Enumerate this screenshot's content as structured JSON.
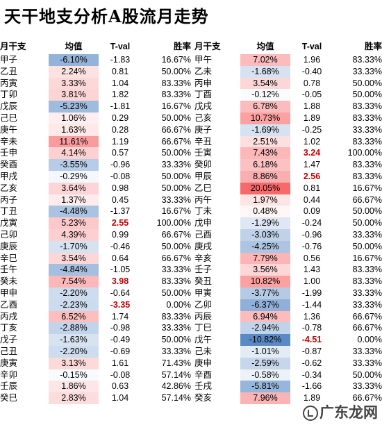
{
  "title": "天干地支分析A股流月走势",
  "headers": {
    "month": "月干支",
    "mean": "均值",
    "tval": "T-val",
    "win": "胜率"
  },
  "watermark": "广东龙网",
  "colors": {
    "pos": "#f8696b",
    "neg": "#5a8ac6",
    "sig": "#c00000"
  },
  "left": [
    {
      "month": "甲子",
      "mean": "-6.10%",
      "tval": "-1.83",
      "win": "16.67%",
      "v": -6.1,
      "sig": false
    },
    {
      "month": "乙丑",
      "mean": "2.24%",
      "tval": "0.81",
      "win": "50.00%",
      "v": 2.24,
      "sig": false
    },
    {
      "month": "丙寅",
      "mean": "3.33%",
      "tval": "1.04",
      "win": "83.33%",
      "v": 3.33,
      "sig": false
    },
    {
      "month": "丁卯",
      "mean": "3.81%",
      "tval": "1.82",
      "win": "83.33%",
      "v": 3.81,
      "sig": false
    },
    {
      "month": "戊辰",
      "mean": "-5.23%",
      "tval": "-1.81",
      "win": "16.67%",
      "v": -5.23,
      "sig": false
    },
    {
      "month": "己巳",
      "mean": "1.06%",
      "tval": "0.29",
      "win": "50.00%",
      "v": 1.06,
      "sig": false
    },
    {
      "month": "庚午",
      "mean": "1.63%",
      "tval": "0.28",
      "win": "66.67%",
      "v": 1.63,
      "sig": false
    },
    {
      "month": "辛未",
      "mean": "11.61%",
      "tval": "1.19",
      "win": "66.67%",
      "v": 11.61,
      "sig": false
    },
    {
      "month": "壬申",
      "mean": "4.14%",
      "tval": "0.57",
      "win": "50.00%",
      "v": 4.14,
      "sig": false
    },
    {
      "month": "癸酉",
      "mean": "-3.55%",
      "tval": "-0.96",
      "win": "33.33%",
      "v": -3.55,
      "sig": false
    },
    {
      "month": "甲戌",
      "mean": "-0.29%",
      "tval": "-0.08",
      "win": "50.00%",
      "v": -0.29,
      "sig": false
    },
    {
      "month": "乙亥",
      "mean": "3.64%",
      "tval": "0.98",
      "win": "50.00%",
      "v": 3.64,
      "sig": false
    },
    {
      "month": "丙子",
      "mean": "1.37%",
      "tval": "0.45",
      "win": "33.33%",
      "v": 1.37,
      "sig": false
    },
    {
      "month": "丁丑",
      "mean": "-4.48%",
      "tval": "-1.37",
      "win": "16.67%",
      "v": -4.48,
      "sig": false
    },
    {
      "month": "戊寅",
      "mean": "5.23%",
      "tval": "2.55",
      "win": "100.00%",
      "v": 5.23,
      "sig": true
    },
    {
      "month": "己卯",
      "mean": "4.39%",
      "tval": "0.99",
      "win": "66.67%",
      "v": 4.39,
      "sig": false
    },
    {
      "month": "庚辰",
      "mean": "-1.70%",
      "tval": "-0.46",
      "win": "50.00%",
      "v": -1.7,
      "sig": false
    },
    {
      "month": "辛巳",
      "mean": "3.54%",
      "tval": "0.64",
      "win": "66.67%",
      "v": 3.54,
      "sig": false
    },
    {
      "month": "壬午",
      "mean": "-4.84%",
      "tval": "-1.05",
      "win": "33.33%",
      "v": -4.84,
      "sig": false
    },
    {
      "month": "癸未",
      "mean": "7.54%",
      "tval": "3.98",
      "win": "83.33%",
      "v": 7.54,
      "sig": true
    },
    {
      "month": "甲申",
      "mean": "-2.20%",
      "tval": "-0.64",
      "win": "50.00%",
      "v": -2.2,
      "sig": false
    },
    {
      "month": "乙酉",
      "mean": "-2.23%",
      "tval": "-3.35",
      "win": "0.00%",
      "v": -2.23,
      "sig": true
    },
    {
      "month": "丙戌",
      "mean": "6.52%",
      "tval": "1.74",
      "win": "83.33%",
      "v": 6.52,
      "sig": false
    },
    {
      "month": "丁亥",
      "mean": "-2.88%",
      "tval": "-0.98",
      "win": "33.33%",
      "v": -2.88,
      "sig": false
    },
    {
      "month": "戊子",
      "mean": "-1.63%",
      "tval": "-0.49",
      "win": "50.00%",
      "v": -1.63,
      "sig": false
    },
    {
      "month": "己丑",
      "mean": "-2.20%",
      "tval": "-0.69",
      "win": "33.33%",
      "v": -2.2,
      "sig": false
    },
    {
      "month": "庚寅",
      "mean": "3.13%",
      "tval": "1.61",
      "win": "71.43%",
      "v": 3.13,
      "sig": false
    },
    {
      "month": "辛卯",
      "mean": "-0.15%",
      "tval": "-0.08",
      "win": "57.14%",
      "v": -0.15,
      "sig": false
    },
    {
      "month": "壬辰",
      "mean": "1.86%",
      "tval": "0.63",
      "win": "42.86%",
      "v": 1.86,
      "sig": false
    },
    {
      "month": "癸巳",
      "mean": "2.83%",
      "tval": "1.04",
      "win": "57.14%",
      "v": 2.83,
      "sig": false
    }
  ],
  "right": [
    {
      "month": "甲午",
      "mean": "7.02%",
      "tval": "1.96",
      "win": "83.33%",
      "v": 7.02,
      "sig": false
    },
    {
      "month": "乙未",
      "mean": "-1.68%",
      "tval": "-0.40",
      "win": "33.33%",
      "v": -1.68,
      "sig": false
    },
    {
      "month": "丙申",
      "mean": "3.54%",
      "tval": "0.78",
      "win": "50.00%",
      "v": 3.54,
      "sig": false
    },
    {
      "month": "丁酉",
      "mean": "-0.12%",
      "tval": "-0.05",
      "win": "50.00%",
      "v": -0.12,
      "sig": false
    },
    {
      "month": "戊戌",
      "mean": "6.78%",
      "tval": "1.88",
      "win": "83.33%",
      "v": 6.78,
      "sig": false
    },
    {
      "month": "己亥",
      "mean": "10.73%",
      "tval": "1.89",
      "win": "83.33%",
      "v": 10.73,
      "sig": false
    },
    {
      "month": "庚子",
      "mean": "-1.69%",
      "tval": "-0.25",
      "win": "33.33%",
      "v": -1.69,
      "sig": false
    },
    {
      "month": "辛丑",
      "mean": "2.51%",
      "tval": "1.02",
      "win": "83.33%",
      "v": 2.51,
      "sig": false
    },
    {
      "month": "壬寅",
      "mean": "7.43%",
      "tval": "3.24",
      "win": "100.00%",
      "v": 7.43,
      "sig": true
    },
    {
      "month": "癸卯",
      "mean": "6.18%",
      "tval": "1.47",
      "win": "83.33%",
      "v": 6.18,
      "sig": false
    },
    {
      "month": "甲辰",
      "mean": "8.86%",
      "tval": "2.56",
      "win": "83.33%",
      "v": 8.86,
      "sig": true
    },
    {
      "month": "乙巳",
      "mean": "20.05%",
      "tval": "0.81",
      "win": "16.67%",
      "v": 20.05,
      "sig": false
    },
    {
      "month": "丙午",
      "mean": "1.97%",
      "tval": "0.44",
      "win": "66.67%",
      "v": 1.97,
      "sig": false
    },
    {
      "month": "丁未",
      "mean": "0.48%",
      "tval": "0.09",
      "win": "50.00%",
      "v": 0.48,
      "sig": false
    },
    {
      "month": "戊申",
      "mean": "-1.29%",
      "tval": "-0.24",
      "win": "50.00%",
      "v": -1.29,
      "sig": false
    },
    {
      "month": "己酉",
      "mean": "-3.03%",
      "tval": "-0.96",
      "win": "33.33%",
      "v": -3.03,
      "sig": false
    },
    {
      "month": "庚戌",
      "mean": "-4.25%",
      "tval": "-0.76",
      "win": "50.00%",
      "v": -4.25,
      "sig": false
    },
    {
      "month": "辛亥",
      "mean": "7.79%",
      "tval": "0.56",
      "win": "16.67%",
      "v": 7.79,
      "sig": false
    },
    {
      "month": "壬子",
      "mean": "3.56%",
      "tval": "1.43",
      "win": "83.33%",
      "v": 3.56,
      "sig": false
    },
    {
      "month": "癸丑",
      "mean": "10.82%",
      "tval": "1.00",
      "win": "83.33%",
      "v": 10.82,
      "sig": false
    },
    {
      "month": "甲寅",
      "mean": "-3.77%",
      "tval": "-1.99",
      "win": "33.33%",
      "v": -3.77,
      "sig": false
    },
    {
      "month": "乙卯",
      "mean": "-6.37%",
      "tval": "-1.44",
      "win": "33.33%",
      "v": -6.37,
      "sig": false
    },
    {
      "month": "丙辰",
      "mean": "6.94%",
      "tval": "1.36",
      "win": "66.67%",
      "v": 6.94,
      "sig": false
    },
    {
      "month": "丁巳",
      "mean": "-2.94%",
      "tval": "-0.78",
      "win": "66.67%",
      "v": -2.94,
      "sig": false
    },
    {
      "month": "戊午",
      "mean": "-10.82%",
      "tval": "-4.51",
      "win": "0.00%",
      "v": -10.82,
      "sig": true
    },
    {
      "month": "己未",
      "mean": "-1.01%",
      "tval": "-0.87",
      "win": "33.33%",
      "v": -1.01,
      "sig": false
    },
    {
      "month": "庚申",
      "mean": "-2.59%",
      "tval": "-0.62",
      "win": "33.33%",
      "v": -2.59,
      "sig": false
    },
    {
      "month": "辛酉",
      "mean": "-0.58%",
      "tval": "-0.34",
      "win": "50.00%",
      "v": -0.58,
      "sig": false
    },
    {
      "month": "壬戌",
      "mean": "-5.81%",
      "tval": "-1.66",
      "win": "33.33%",
      "v": -5.81,
      "sig": false
    },
    {
      "month": "癸亥",
      "mean": "7.96%",
      "tval": "1.89",
      "win": "66.67%",
      "v": 7.96,
      "sig": false
    }
  ]
}
